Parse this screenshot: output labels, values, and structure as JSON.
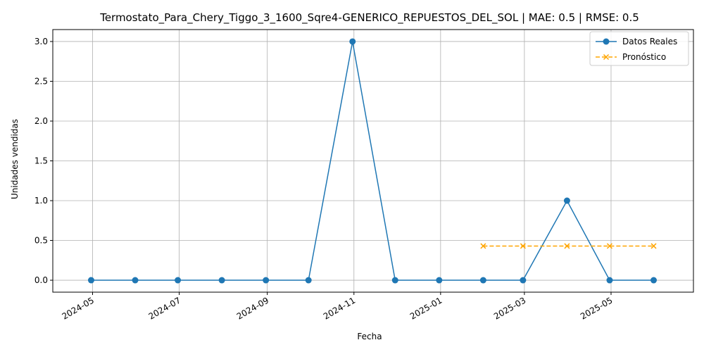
{
  "chart_data": {
    "type": "line",
    "title": "Termostato_Para_Chery_Tiggo_3_1600_Sqre4-GENERICO_REPUESTOS_DEL_SOL | MAE: 0.5 | RMSE: 0.5",
    "xlabel": "Fecha",
    "ylabel": "Unidades vendidas",
    "x_ticks": [
      "2024-05",
      "2024-07",
      "2024-09",
      "2024-11",
      "2025-01",
      "2025-03",
      "2025-05"
    ],
    "y_ticks": [
      "0.0",
      "0.5",
      "1.0",
      "1.5",
      "2.0",
      "2.5",
      "3.0"
    ],
    "ylim": [
      -0.15,
      3.15
    ],
    "xlim": [
      "2024-04-03",
      "2025-06-28"
    ],
    "grid": true,
    "legend_position": "top-right",
    "series": [
      {
        "name": "Datos Reales",
        "color": "#1f77b4",
        "style": "solid",
        "marker": "circle",
        "points": [
          {
            "x": "2024-04-30",
            "y": 0
          },
          {
            "x": "2024-05-31",
            "y": 0
          },
          {
            "x": "2024-06-30",
            "y": 0
          },
          {
            "x": "2024-07-31",
            "y": 0
          },
          {
            "x": "2024-08-31",
            "y": 0
          },
          {
            "x": "2024-09-30",
            "y": 0
          },
          {
            "x": "2024-10-31",
            "y": 3
          },
          {
            "x": "2024-11-30",
            "y": 0
          },
          {
            "x": "2024-12-31",
            "y": 0
          },
          {
            "x": "2025-01-31",
            "y": 0
          },
          {
            "x": "2025-02-28",
            "y": 0
          },
          {
            "x": "2025-03-31",
            "y": 1
          },
          {
            "x": "2025-04-30",
            "y": 0
          },
          {
            "x": "2025-05-31",
            "y": 0
          }
        ]
      },
      {
        "name": "Pronóstico",
        "color": "#ffa500",
        "style": "dashed",
        "marker": "x",
        "points": [
          {
            "x": "2025-01-31",
            "y": 0.43
          },
          {
            "x": "2025-02-28",
            "y": 0.43
          },
          {
            "x": "2025-03-31",
            "y": 0.43
          },
          {
            "x": "2025-04-30",
            "y": 0.43
          },
          {
            "x": "2025-05-31",
            "y": 0.43
          }
        ]
      }
    ]
  }
}
